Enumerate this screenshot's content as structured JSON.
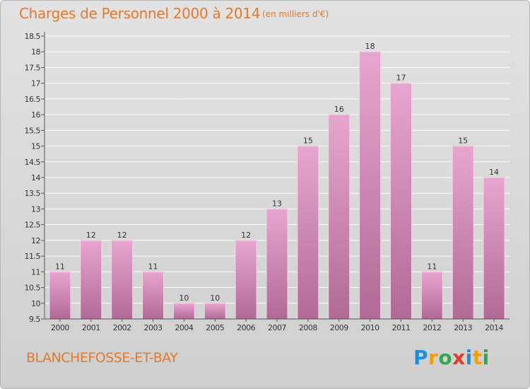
{
  "header": {
    "title": "Charges de Personnel 2000 à 2014",
    "subtitle": "(en milliers d'€)"
  },
  "footer": {
    "commune": "BLANCHEFOSSE-ET-BAY",
    "brand": {
      "letters": [
        "P",
        "r",
        "o",
        "x",
        "i",
        "t",
        "i"
      ],
      "colors": [
        "#1e8fd6",
        "#f2a000",
        "#2fa84f",
        "#e23a2a",
        "#1e8fd6",
        "#f2a000",
        "#2fa84f"
      ]
    }
  },
  "colors": {
    "bar_top": "#e7a6cf",
    "bar_bottom": "#b06a95",
    "bar_stroke": "#f3d2e6",
    "grid": "#ffffff",
    "title": "#e07a2e"
  },
  "chart_data": {
    "type": "bar",
    "title": "Charges de Personnel 2000 à 2014",
    "subtitle": "(en milliers d'€)",
    "xlabel": "",
    "ylabel": "",
    "categories": [
      "2000",
      "2001",
      "2002",
      "2003",
      "2004",
      "2005",
      "2006",
      "2007",
      "2008",
      "2009",
      "2010",
      "2011",
      "2012",
      "2013",
      "2014"
    ],
    "values": [
      11,
      12,
      12,
      11,
      10,
      10,
      12,
      13,
      15,
      16,
      18,
      17,
      11,
      15,
      14
    ],
    "ylim": [
      9.5,
      18.5
    ],
    "yticks": [
      "9.5",
      "10",
      "10.5",
      "11",
      "11.5",
      "12",
      "12.5",
      "13",
      "13.5",
      "14",
      "14.5",
      "15",
      "15.5",
      "16",
      "16.5",
      "17",
      "17.5",
      "18",
      "18.5"
    ],
    "grid": true,
    "legend": "none"
  }
}
